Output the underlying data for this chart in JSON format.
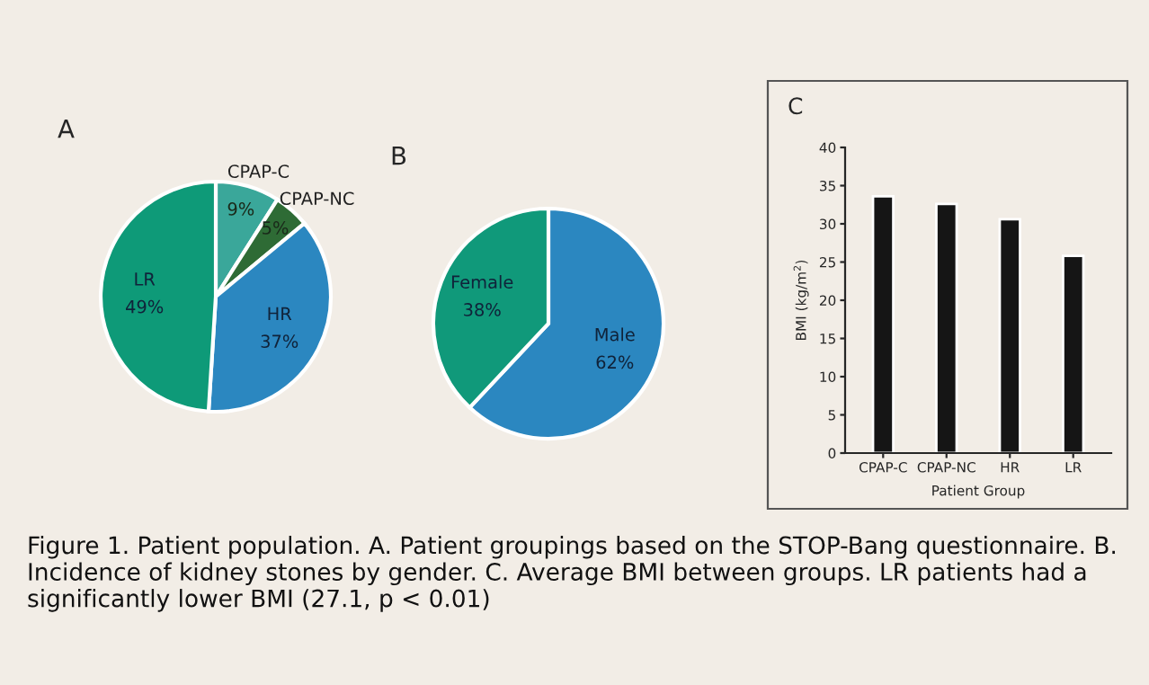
{
  "chart_data": [
    {
      "type": "pie",
      "title": "A",
      "categories": [
        "CPAP-C",
        "CPAP-NC",
        "HR",
        "LR"
      ],
      "values": [
        9,
        5,
        37,
        49
      ],
      "colors": [
        "#3aa79a",
        "#2e6b35",
        "#2b87c0",
        "#0e9a78"
      ],
      "value_labels": [
        "9%",
        "5%",
        "37%",
        "49%"
      ]
    },
    {
      "type": "pie",
      "title": "B",
      "categories": [
        "Male",
        "Female"
      ],
      "values": [
        62,
        38
      ],
      "colors": [
        "#2b87c0",
        "#10997a"
      ],
      "value_labels": [
        "62%",
        "38%"
      ]
    },
    {
      "type": "bar",
      "title": "C",
      "categories": [
        "CPAP-C",
        "CPAP-NC",
        "HR",
        "LR"
      ],
      "values": [
        33.6,
        32.6,
        30.6,
        25.8
      ],
      "color": "#151515",
      "ylabel": "BMI (kg/m$^{2}$)",
      "xlabel": "Patient Group",
      "ylim": [
        0,
        40
      ],
      "yticks": [
        0,
        5,
        10,
        15,
        20,
        25,
        30,
        35,
        40
      ],
      "grid": false,
      "annotations": [
        "Figure 1. Patient population. A. Patient groupings based on the STOP-Bang questionnaire. B. Incidence of kidney stones by gender. C. Average BMI between groups. LR patients had a significantly lower BMI (27.1, p < 0.01)"
      ]
    }
  ]
}
